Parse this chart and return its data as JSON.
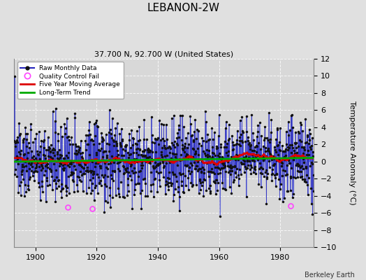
{
  "title": "LEBANON-2W",
  "subtitle": "37.700 N, 92.700 W (United States)",
  "ylabel": "Temperature Anomaly (°C)",
  "credit": "Berkeley Earth",
  "xlim": [
    1893,
    1991
  ],
  "ylim": [
    -10,
    12
  ],
  "yticks": [
    -10,
    -8,
    -6,
    -4,
    -2,
    0,
    2,
    4,
    6,
    8,
    10,
    12
  ],
  "xticks": [
    1900,
    1920,
    1940,
    1960,
    1980
  ],
  "start_year": 1893,
  "end_year": 1990,
  "bg_color": "#e0e0e0",
  "plot_bg_color": "#d8d8d8",
  "grid_color": "#ffffff",
  "bar_color": "#5566ee",
  "line_color": "#2222bb",
  "marker_color": "#111111",
  "moving_avg_color": "#dd0000",
  "trend_color": "#00aa00",
  "qc_fail_color": "#ff44ff",
  "seed": 137,
  "amplitude": 2.2,
  "moving_avg_window": 60,
  "qc_year_1": 1910.5,
  "qc_year_2": 1918.5,
  "qc_year_3": 1983.5,
  "qc_val_1": -5.3,
  "qc_val_2": -5.5,
  "qc_val_3": -5.2
}
